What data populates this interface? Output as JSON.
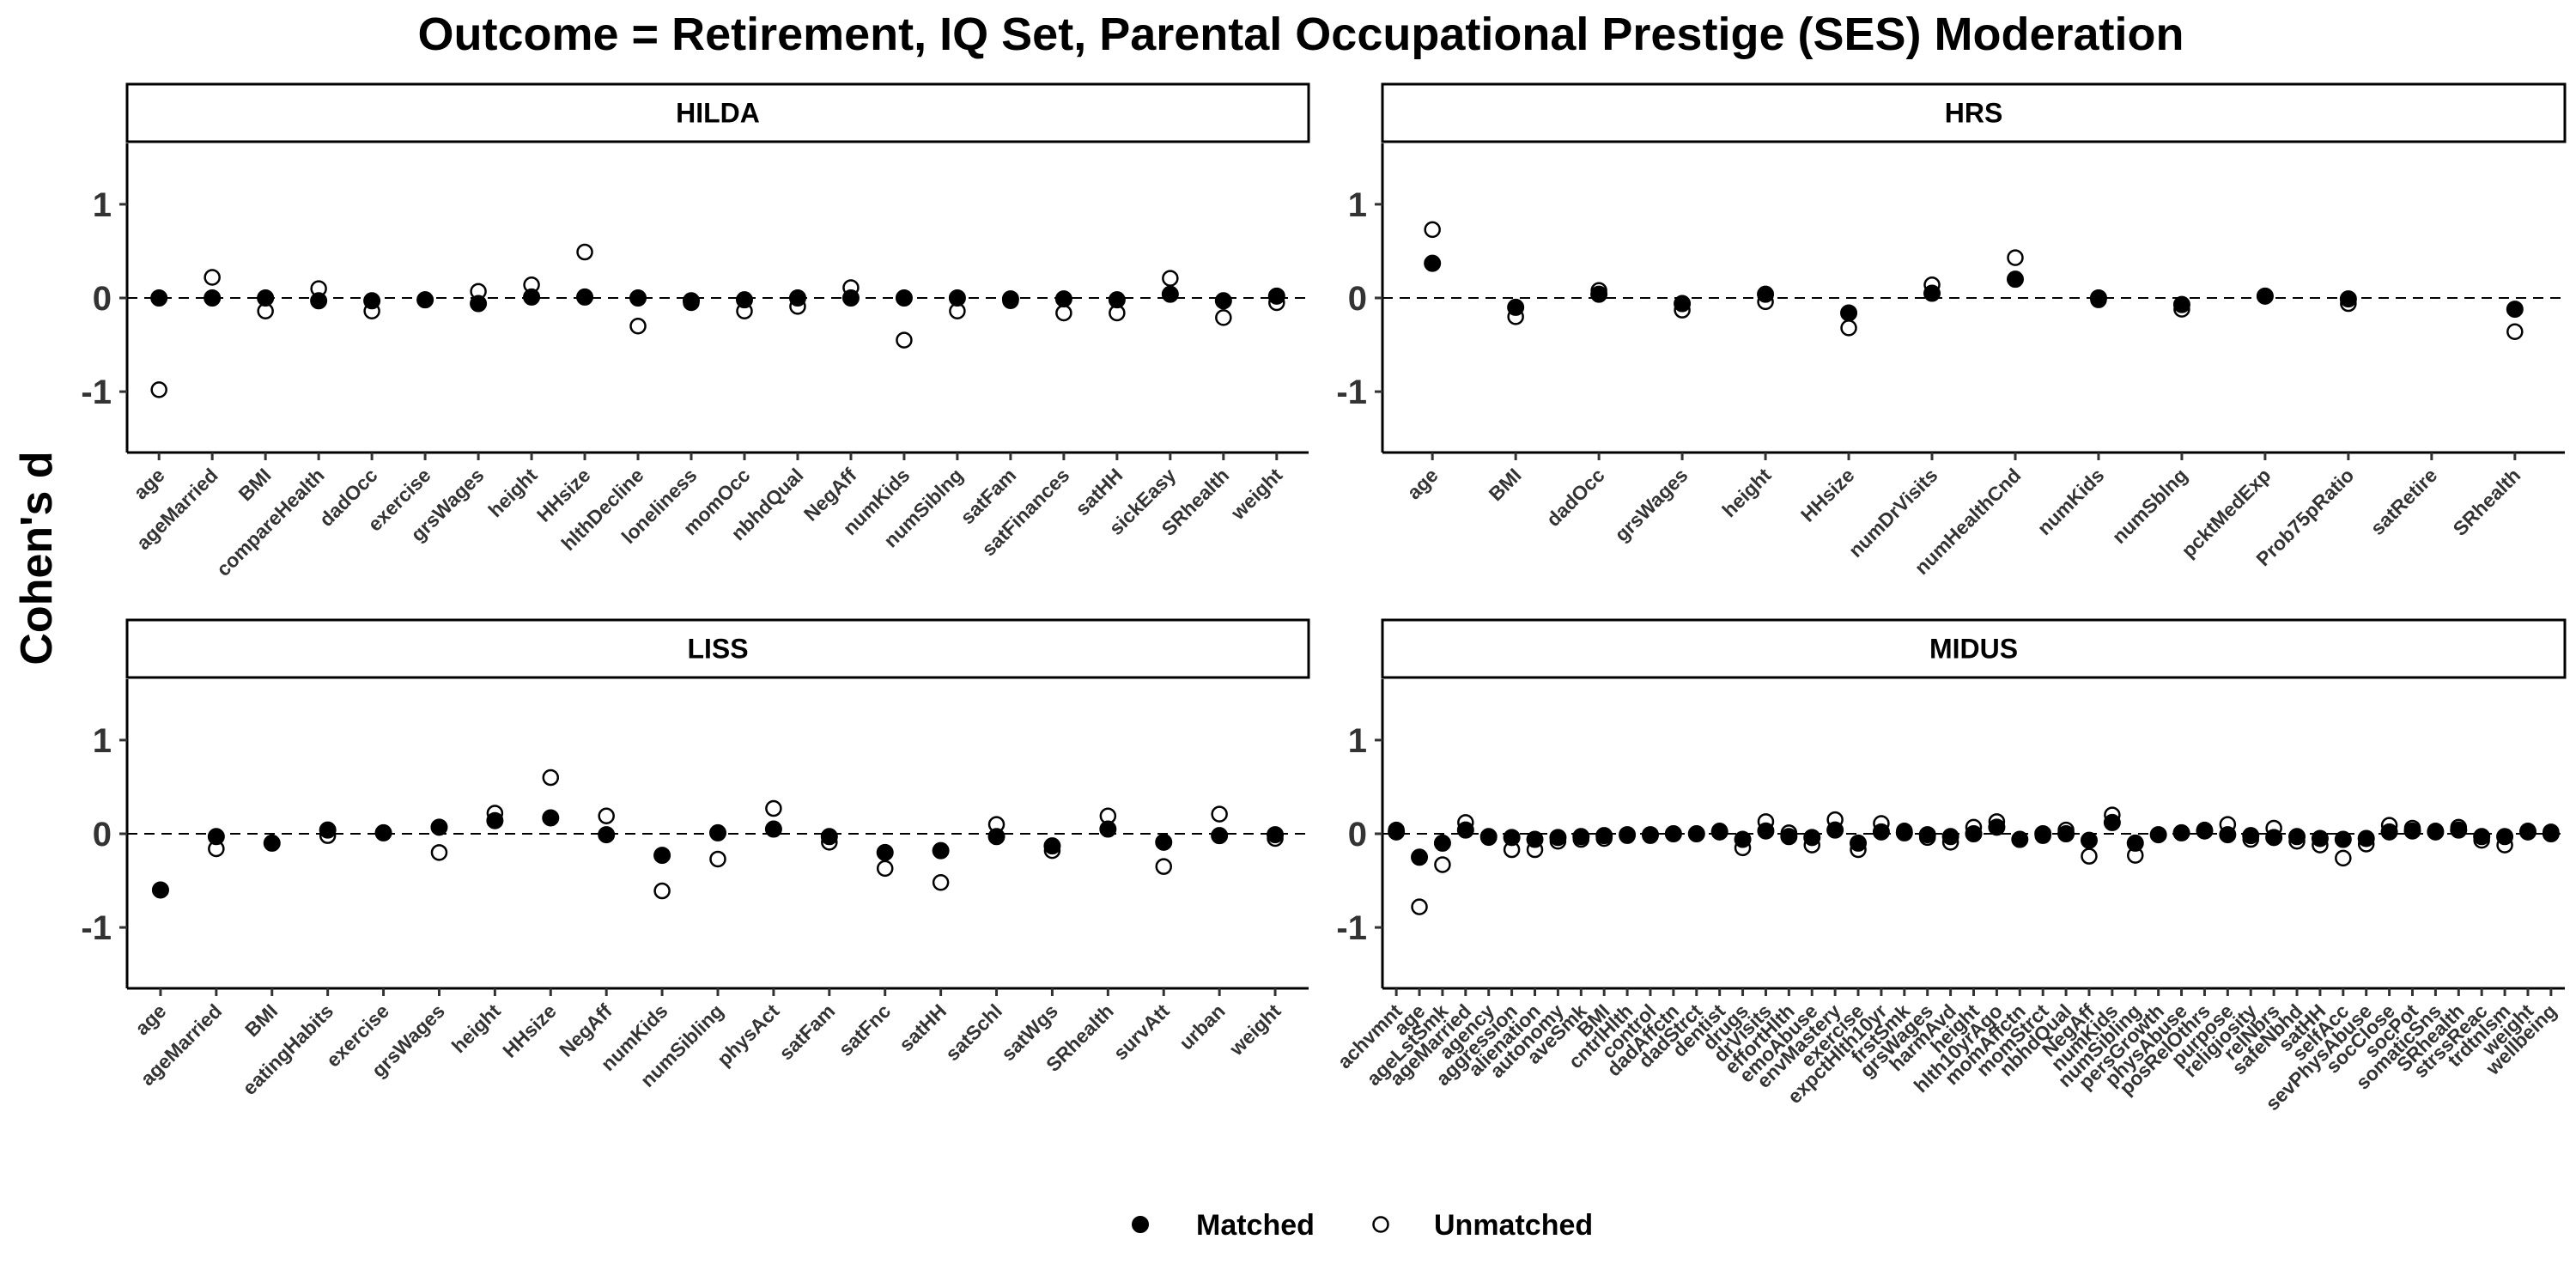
{
  "chart_data": {
    "type": "scatter",
    "title": "Outcome = Retirement, IQ Set, Parental Occupational Prestige (SES) Moderation",
    "ylabel": "Cohen's d",
    "ylim": [
      -1.65,
      1.65
    ],
    "yticks": [
      -1,
      0,
      1
    ],
    "yticks_labels": [
      "-1",
      "0",
      "1"
    ],
    "reference_line": 0,
    "legend": {
      "position": "bottom",
      "entries": [
        "Matched",
        "Unmatched"
      ]
    },
    "panels": [
      {
        "name": "HILDA",
        "categories": [
          "age",
          "ageMarried",
          "BMI",
          "compareHealth",
          "dadOcc",
          "exercise",
          "grsWages",
          "height",
          "HHsize",
          "hlthDecline",
          "loneliness",
          "momOcc",
          "nbhdQual",
          "NegAff",
          "numKids",
          "numSiblng",
          "satFam",
          "satFinances",
          "satHH",
          "sickEasy",
          "SRhealth",
          "weight"
        ],
        "series": [
          {
            "name": "Matched",
            "values": [
              0.0,
              0.0,
              0.0,
              -0.03,
              -0.03,
              -0.02,
              -0.06,
              0.01,
              0.01,
              0.0,
              -0.03,
              -0.02,
              0.0,
              0.0,
              0.0,
              0.0,
              -0.01,
              -0.01,
              -0.02,
              0.04,
              -0.03,
              0.02
            ]
          },
          {
            "name": "Unmatched",
            "values": [
              -0.98,
              0.22,
              -0.14,
              0.1,
              -0.14,
              -0.02,
              0.07,
              0.14,
              0.49,
              -0.3,
              -0.05,
              -0.14,
              -0.09,
              0.11,
              -0.45,
              -0.14,
              -0.03,
              -0.16,
              -0.16,
              0.21,
              -0.21,
              -0.05
            ]
          }
        ]
      },
      {
        "name": "HRS",
        "categories": [
          "age",
          "BMI",
          "dadOcc",
          "grsWages",
          "height",
          "HHsize",
          "numDrVisits",
          "numHealthCnd",
          "numKids",
          "numSblng",
          "pcktMedExp",
          "Prob75pRatio",
          "satRetire",
          "SRhealth"
        ],
        "series": [
          {
            "name": "Matched",
            "values": [
              0.37,
              -0.1,
              0.04,
              -0.06,
              0.04,
              -0.16,
              0.05,
              0.2,
              0.0,
              -0.07,
              0.02,
              -0.01,
              null,
              -0.12
            ]
          },
          {
            "name": "Unmatched",
            "values": [
              0.73,
              -0.2,
              0.08,
              -0.13,
              -0.04,
              -0.32,
              0.14,
              0.43,
              -0.02,
              -0.12,
              0.02,
              -0.06,
              null,
              -0.36
            ]
          }
        ]
      },
      {
        "name": "LISS",
        "categories": [
          "age",
          "ageMarried",
          "BMI",
          "eatingHabits",
          "exercise",
          "grsWages",
          "height",
          "HHsize",
          "NegAff",
          "numKids",
          "numSibling",
          "physAct",
          "satFam",
          "satFnc",
          "satHH",
          "satSchl",
          "satWgs",
          "SRhealth",
          "survAtt",
          "urban",
          "weight"
        ],
        "series": [
          {
            "name": "Matched",
            "values": [
              -0.6,
              -0.03,
              -0.1,
              0.04,
              0.01,
              0.07,
              0.14,
              0.17,
              -0.01,
              -0.23,
              0.01,
              0.05,
              -0.03,
              -0.2,
              -0.18,
              -0.03,
              -0.13,
              0.05,
              -0.09,
              -0.02,
              -0.01
            ]
          },
          {
            "name": "Unmatched",
            "values": [
              -0.6,
              -0.16,
              -0.1,
              -0.02,
              0.01,
              -0.2,
              0.22,
              0.6,
              0.19,
              -0.61,
              -0.27,
              0.27,
              -0.09,
              -0.37,
              -0.52,
              0.1,
              -0.18,
              0.19,
              -0.35,
              0.21,
              -0.05
            ]
          }
        ]
      },
      {
        "name": "MIDUS",
        "categories": [
          "achvmnt",
          "age",
          "ageLstSmk",
          "ageMarried",
          "agency",
          "aggression",
          "alienation",
          "autonomy",
          "aveSmk",
          "BMI",
          "cntrlHlth",
          "control",
          "dadAffctn",
          "dadStrct",
          "dentist",
          "drugs",
          "drVisits",
          "effortHlth",
          "emoAbuse",
          "envMastery",
          "exercise",
          "expctHlth10yr",
          "frstSmk",
          "grsWages",
          "harmAvd",
          "height",
          "hlth10yrAgo",
          "momAffctn",
          "momStrct",
          "nbhdQual",
          "NegAff",
          "numKids",
          "numSibling",
          "persGrowth",
          "physAbuse",
          "posRelOthrs",
          "purpose",
          "religiosity",
          "relNbrs",
          "safeNbhd",
          "satHH",
          "selfAcc",
          "sevPhysAbuse",
          "socClose",
          "socPot",
          "somaticSns",
          "SRhealth",
          "strssReac",
          "trdtnlsm",
          "weight",
          "wellbeing"
        ],
        "series": [
          {
            "name": "Matched",
            "values": [
              0.02,
              -0.25,
              -0.1,
              0.04,
              -0.03,
              -0.04,
              -0.06,
              -0.04,
              -0.03,
              -0.02,
              -0.01,
              -0.01,
              0.0,
              0.0,
              0.02,
              -0.06,
              0.03,
              -0.03,
              -0.04,
              0.04,
              -0.1,
              0.02,
              0.01,
              -0.01,
              -0.03,
              0.0,
              0.07,
              -0.06,
              0.0,
              0.0,
              -0.07,
              0.12,
              -0.1,
              -0.01,
              0.01,
              0.03,
              -0.01,
              -0.02,
              -0.04,
              -0.03,
              -0.05,
              -0.06,
              -0.05,
              0.02,
              0.03,
              0.02,
              0.04,
              -0.03,
              -0.03,
              0.02,
              0.0
            ]
          },
          {
            "name": "Unmatched",
            "values": [
              0.04,
              -0.78,
              -0.33,
              0.12,
              -0.04,
              -0.17,
              -0.17,
              -0.08,
              -0.06,
              -0.05,
              -0.02,
              -0.02,
              0.0,
              0.0,
              0.03,
              -0.15,
              0.13,
              0.01,
              -0.12,
              0.15,
              -0.17,
              0.11,
              0.03,
              -0.04,
              -0.09,
              0.07,
              0.13,
              -0.06,
              -0.02,
              0.04,
              -0.24,
              0.2,
              -0.23,
              -0.01,
              0.01,
              0.04,
              0.1,
              -0.06,
              0.06,
              -0.08,
              -0.12,
              -0.26,
              -0.11,
              0.09,
              0.06,
              0.03,
              0.07,
              -0.07,
              -0.12,
              0.03,
              0.02
            ]
          }
        ]
      }
    ]
  }
}
